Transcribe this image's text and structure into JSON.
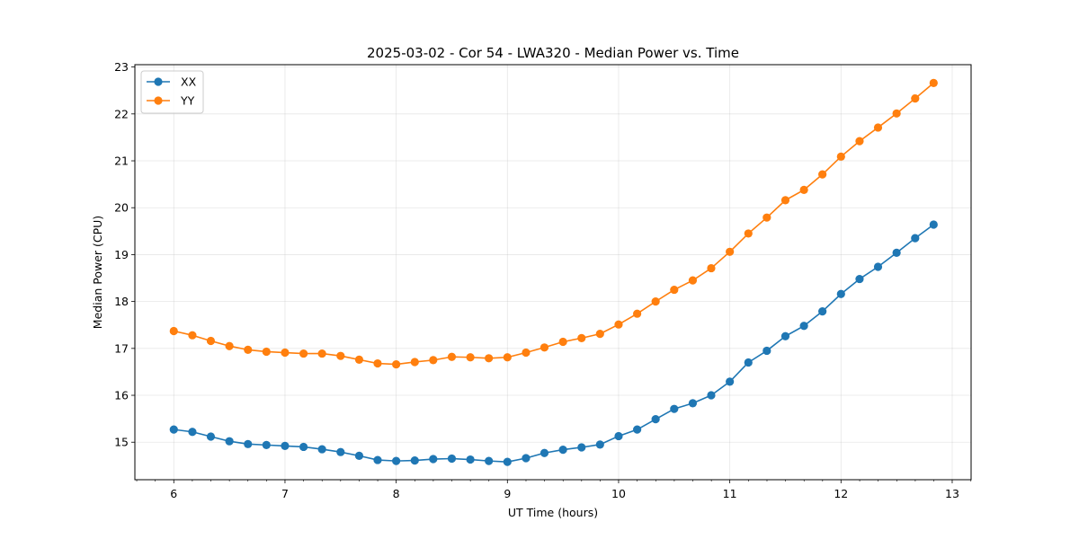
{
  "chart_data": {
    "type": "line",
    "title": "2025-03-02 - Cor 54 - LWA320 - Median Power vs. Time",
    "xlabel": "UT Time (hours)",
    "ylabel": "Median Power (CPU)",
    "xlim": [
      5.65,
      13.17
    ],
    "ylim": [
      14.2,
      23.05
    ],
    "xticks": [
      6,
      7,
      8,
      9,
      10,
      11,
      12,
      13
    ],
    "yticks": [
      15,
      16,
      17,
      18,
      19,
      20,
      21,
      22,
      23
    ],
    "x_minor_step": 0.1667,
    "grid": true,
    "legend_position": "top-left",
    "x": [
      6.0,
      6.167,
      6.333,
      6.5,
      6.667,
      6.833,
      7.0,
      7.167,
      7.333,
      7.5,
      7.667,
      7.833,
      8.0,
      8.167,
      8.333,
      8.5,
      8.667,
      8.833,
      9.0,
      9.167,
      9.333,
      9.5,
      9.667,
      9.833,
      10.0,
      10.167,
      10.333,
      10.5,
      10.667,
      10.833,
      11.0,
      11.167,
      11.333,
      11.5,
      11.667,
      11.833,
      12.0,
      12.167,
      12.333,
      12.5,
      12.667,
      12.833
    ],
    "series": [
      {
        "name": "XX",
        "color": "#1f77b4",
        "values": [
          15.27,
          15.22,
          15.12,
          15.02,
          14.96,
          14.94,
          14.92,
          14.9,
          14.85,
          14.79,
          14.71,
          14.62,
          14.6,
          14.61,
          14.64,
          14.65,
          14.63,
          14.6,
          14.58,
          14.66,
          14.77,
          14.84,
          14.89,
          14.95,
          15.13,
          15.27,
          15.49,
          15.71,
          15.83,
          16.0,
          16.29,
          16.7,
          16.95,
          17.26,
          17.48,
          17.79,
          18.16,
          18.48,
          18.74,
          19.04,
          19.35,
          19.64
        ]
      },
      {
        "name": "YY",
        "color": "#ff7f0e",
        "values": [
          17.37,
          17.28,
          17.16,
          17.05,
          16.97,
          16.93,
          16.91,
          16.89,
          16.89,
          16.84,
          16.76,
          16.68,
          16.66,
          16.71,
          16.75,
          16.82,
          16.81,
          16.79,
          16.81,
          16.91,
          17.02,
          17.14,
          17.22,
          17.31,
          17.51,
          17.74,
          18.0,
          18.25,
          18.45,
          18.71,
          19.06,
          19.45,
          19.79,
          20.16,
          20.38,
          20.71,
          21.09,
          21.42,
          21.71,
          22.01,
          22.33,
          22.66
        ]
      }
    ]
  }
}
